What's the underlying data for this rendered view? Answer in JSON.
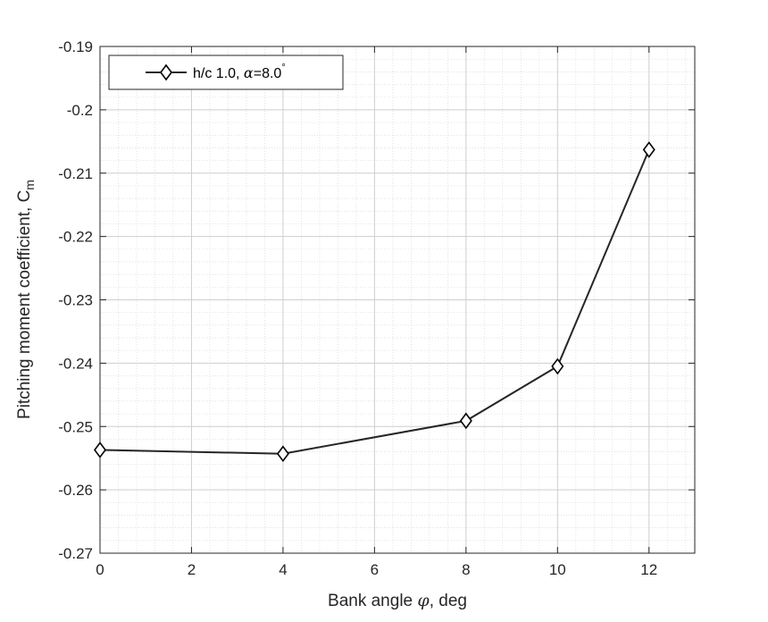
{
  "chart_data": {
    "type": "line",
    "x": [
      0,
      4,
      8,
      10,
      12
    ],
    "series": [
      {
        "name": "h/c 1.0, α=8.0°",
        "name_main": "h/c 1.0, ",
        "name_alpha": "α",
        "name_value": "=8.0",
        "name_sup": "°",
        "values": [
          -0.2537,
          -0.2543,
          -0.2491,
          -0.2405,
          -0.2063
        ],
        "marker": "diamond",
        "color": "#262626"
      }
    ],
    "xlabel": "Bank angle φ, deg",
    "xlabel_parts": {
      "pre": "Bank angle ",
      "sym": "φ",
      "post": ", deg"
    },
    "ylabel": "Pitching moment coefficient, Cm",
    "ylabel_parts": {
      "pre": "Pitching moment coefficient, C",
      "sub": "m"
    },
    "xlim": [
      0,
      13
    ],
    "ylim": [
      -0.27,
      -0.19
    ],
    "xticks": [
      0,
      2,
      4,
      6,
      8,
      10,
      12
    ],
    "xtick_labels": [
      "0",
      "2",
      "4",
      "6",
      "8",
      "10",
      "12"
    ],
    "yticks": [
      -0.27,
      -0.26,
      -0.25,
      -0.24,
      -0.23,
      -0.22,
      -0.21,
      -0.2,
      -0.19
    ],
    "ytick_labels": [
      "-0.27",
      "-0.26",
      "-0.25",
      "-0.24",
      "-0.23",
      "-0.22",
      "-0.21",
      "-0.2",
      "-0.19"
    ],
    "grid": true,
    "minor_grid": true,
    "legend_position": "top-left"
  }
}
